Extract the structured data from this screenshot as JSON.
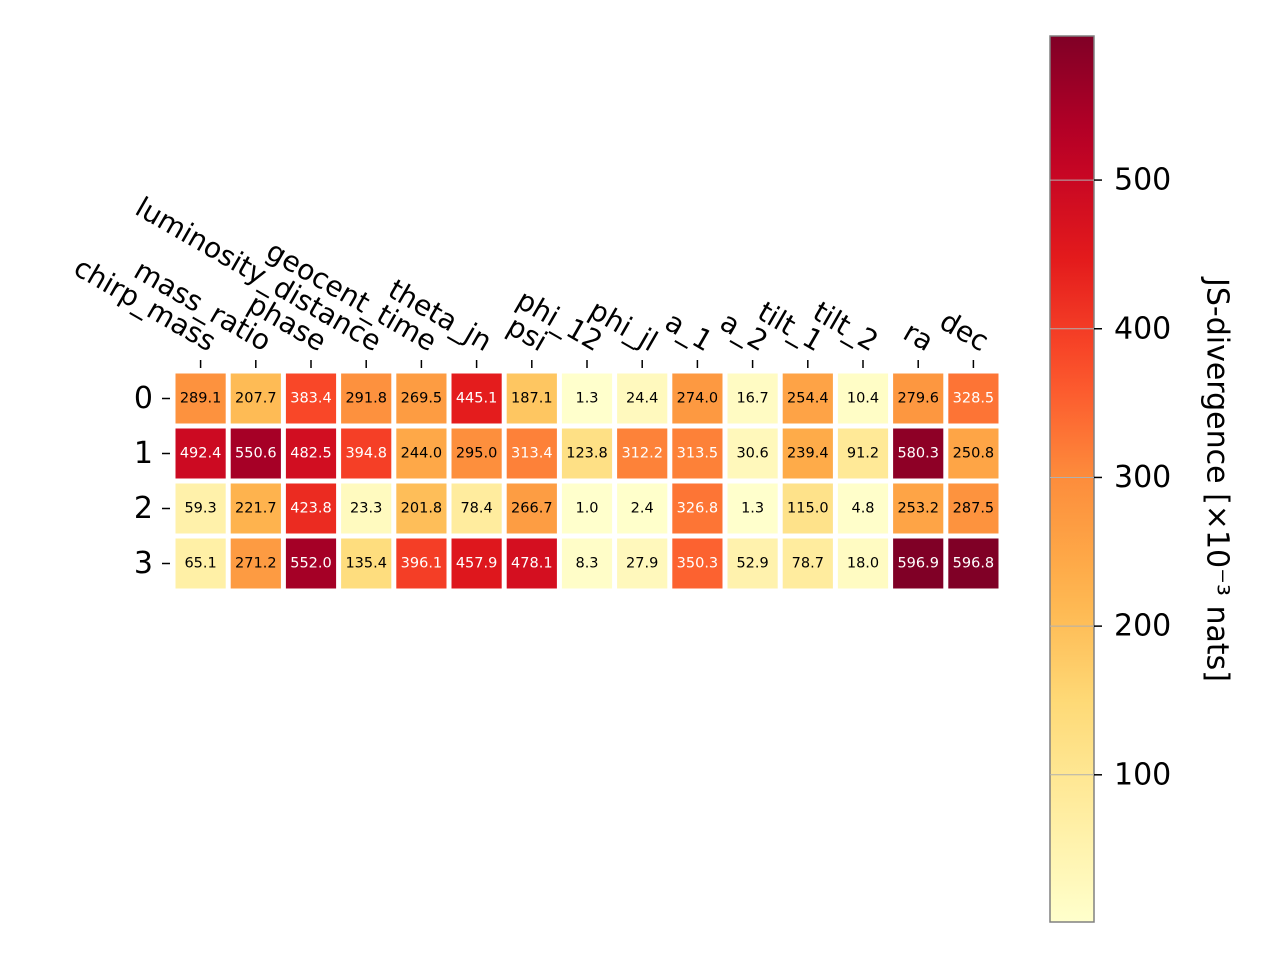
{
  "chart_data": {
    "type": "heatmap",
    "x_labels": [
      "chirp_mass",
      "mass_ratio",
      "phase",
      "luminosity_distance",
      "geocent_time",
      "theta_jn",
      "psi",
      "phi_12",
      "phi_jl",
      "a_1",
      "a_2",
      "tilt_1",
      "tilt_2",
      "ra",
      "dec"
    ],
    "y_labels": [
      "0",
      "1",
      "2",
      "3"
    ],
    "values": [
      [
        289.1,
        207.7,
        383.4,
        291.8,
        269.5,
        445.1,
        187.1,
        1.3,
        24.4,
        274.0,
        16.7,
        254.4,
        10.4,
        279.6,
        328.5
      ],
      [
        492.4,
        550.6,
        482.5,
        394.8,
        244.0,
        295.0,
        313.4,
        123.8,
        312.2,
        313.5,
        30.6,
        239.4,
        91.2,
        580.3,
        250.8
      ],
      [
        59.3,
        221.7,
        423.8,
        23.3,
        201.8,
        78.4,
        266.7,
        1.0,
        2.4,
        326.8,
        1.3,
        115.0,
        4.8,
        253.2,
        287.5
      ],
      [
        65.1,
        271.2,
        552.0,
        135.4,
        396.1,
        457.9,
        478.1,
        8.3,
        27.9,
        350.3,
        52.9,
        78.7,
        18.0,
        596.9,
        596.8
      ]
    ],
    "colormap": "YlOrRd",
    "color_range": [
      1.0,
      596.9
    ],
    "colorbar": {
      "label": "JS-divergence [×10⁻³ nats]",
      "ticks": [
        100,
        200,
        300,
        400,
        500
      ]
    }
  }
}
